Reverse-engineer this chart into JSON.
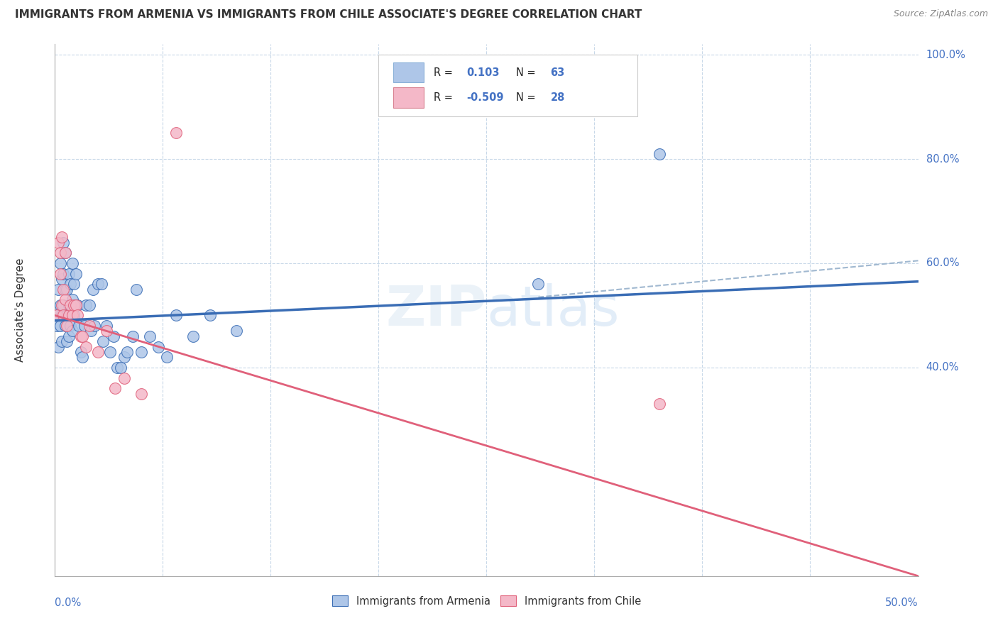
{
  "title": "IMMIGRANTS FROM ARMENIA VS IMMIGRANTS FROM CHILE ASSOCIATE'S DEGREE CORRELATION CHART",
  "source": "Source: ZipAtlas.com",
  "ylabel": "Associate's Degree",
  "R_armenia": 0.103,
  "N_armenia": 63,
  "R_chile": -0.509,
  "N_chile": 28,
  "color_armenia": "#aec6e8",
  "color_chile": "#f4b8c8",
  "line_color_armenia": "#3a6db5",
  "line_color_chile": "#e0607a",
  "line_color_dashed": "#a0b8d0",
  "arm_line_x0": 0.0,
  "arm_line_y0": 0.49,
  "arm_line_x1": 0.5,
  "arm_line_y1": 0.565,
  "chile_line_x0": 0.0,
  "chile_line_y0": 0.5,
  "chile_line_x1": 0.5,
  "chile_line_y1": 0.0,
  "dashed_line_x0": 0.28,
  "dashed_line_y0": 0.535,
  "dashed_line_x1": 0.5,
  "dashed_line_y1": 0.605,
  "armenia_x": [
    0.001,
    0.001,
    0.002,
    0.002,
    0.003,
    0.003,
    0.003,
    0.004,
    0.004,
    0.004,
    0.005,
    0.005,
    0.005,
    0.006,
    0.006,
    0.006,
    0.007,
    0.007,
    0.007,
    0.008,
    0.008,
    0.008,
    0.009,
    0.009,
    0.01,
    0.01,
    0.01,
    0.011,
    0.011,
    0.012,
    0.012,
    0.013,
    0.014,
    0.015,
    0.016,
    0.017,
    0.018,
    0.02,
    0.021,
    0.022,
    0.023,
    0.025,
    0.027,
    0.028,
    0.03,
    0.032,
    0.034,
    0.036,
    0.038,
    0.04,
    0.042,
    0.045,
    0.047,
    0.05,
    0.055,
    0.06,
    0.065,
    0.07,
    0.08,
    0.09,
    0.105,
    0.28,
    0.35
  ],
  "armenia_y": [
    0.5,
    0.48,
    0.55,
    0.44,
    0.6,
    0.52,
    0.48,
    0.57,
    0.5,
    0.45,
    0.64,
    0.58,
    0.52,
    0.55,
    0.62,
    0.48,
    0.55,
    0.5,
    0.45,
    0.52,
    0.58,
    0.46,
    0.56,
    0.48,
    0.6,
    0.53,
    0.47,
    0.56,
    0.5,
    0.58,
    0.52,
    0.52,
    0.48,
    0.43,
    0.42,
    0.48,
    0.52,
    0.52,
    0.47,
    0.55,
    0.48,
    0.56,
    0.56,
    0.45,
    0.48,
    0.43,
    0.46,
    0.4,
    0.4,
    0.42,
    0.43,
    0.46,
    0.55,
    0.43,
    0.46,
    0.44,
    0.42,
    0.5,
    0.46,
    0.5,
    0.47,
    0.56,
    0.81
  ],
  "chile_x": [
    0.001,
    0.002,
    0.003,
    0.003,
    0.004,
    0.004,
    0.005,
    0.005,
    0.006,
    0.006,
    0.007,
    0.008,
    0.009,
    0.01,
    0.011,
    0.012,
    0.013,
    0.015,
    0.016,
    0.018,
    0.02,
    0.025,
    0.03,
    0.035,
    0.04,
    0.05,
    0.07,
    0.35
  ],
  "chile_y": [
    0.5,
    0.64,
    0.62,
    0.58,
    0.52,
    0.65,
    0.55,
    0.5,
    0.53,
    0.62,
    0.48,
    0.5,
    0.52,
    0.5,
    0.52,
    0.52,
    0.5,
    0.46,
    0.46,
    0.44,
    0.48,
    0.43,
    0.47,
    0.36,
    0.38,
    0.35,
    0.85,
    0.33
  ],
  "xlim": [
    0.0,
    0.5
  ],
  "ylim": [
    0.0,
    1.0
  ],
  "ytick_vals": [
    0.4,
    0.6,
    0.8,
    1.0
  ],
  "ytick_labels": [
    "40.0%",
    "60.0%",
    "80.0%",
    "100.0%"
  ]
}
